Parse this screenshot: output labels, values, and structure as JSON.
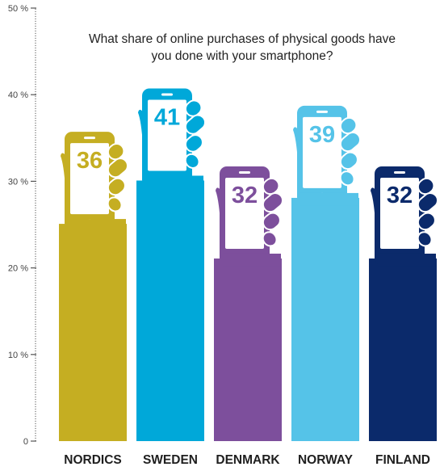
{
  "chart_data": {
    "type": "bar",
    "title_lines": [
      "What share of online purchases of physical goods have",
      "you done with your smartphone?"
    ],
    "categories": [
      "NORDICS",
      "SWEDEN",
      "DENMARK",
      "NORWAY",
      "FINLAND"
    ],
    "values": [
      36,
      41,
      32,
      39,
      32
    ],
    "value_labels": [
      "36",
      "41",
      "32",
      "39",
      "32"
    ],
    "colors": [
      "#c5ae22",
      "#00a8d9",
      "#7d4f9c",
      "#55c3e8",
      "#0b2a6b"
    ],
    "ylim": [
      0,
      50
    ],
    "yticks": [
      0,
      10,
      20,
      30,
      40,
      50
    ],
    "ytick_labels": [
      "0",
      "10 %",
      "20 %",
      "30 %",
      "40 %",
      "50 %"
    ],
    "icon": "hand-holding-smartphone-icon",
    "grid": false,
    "legend": "none"
  }
}
